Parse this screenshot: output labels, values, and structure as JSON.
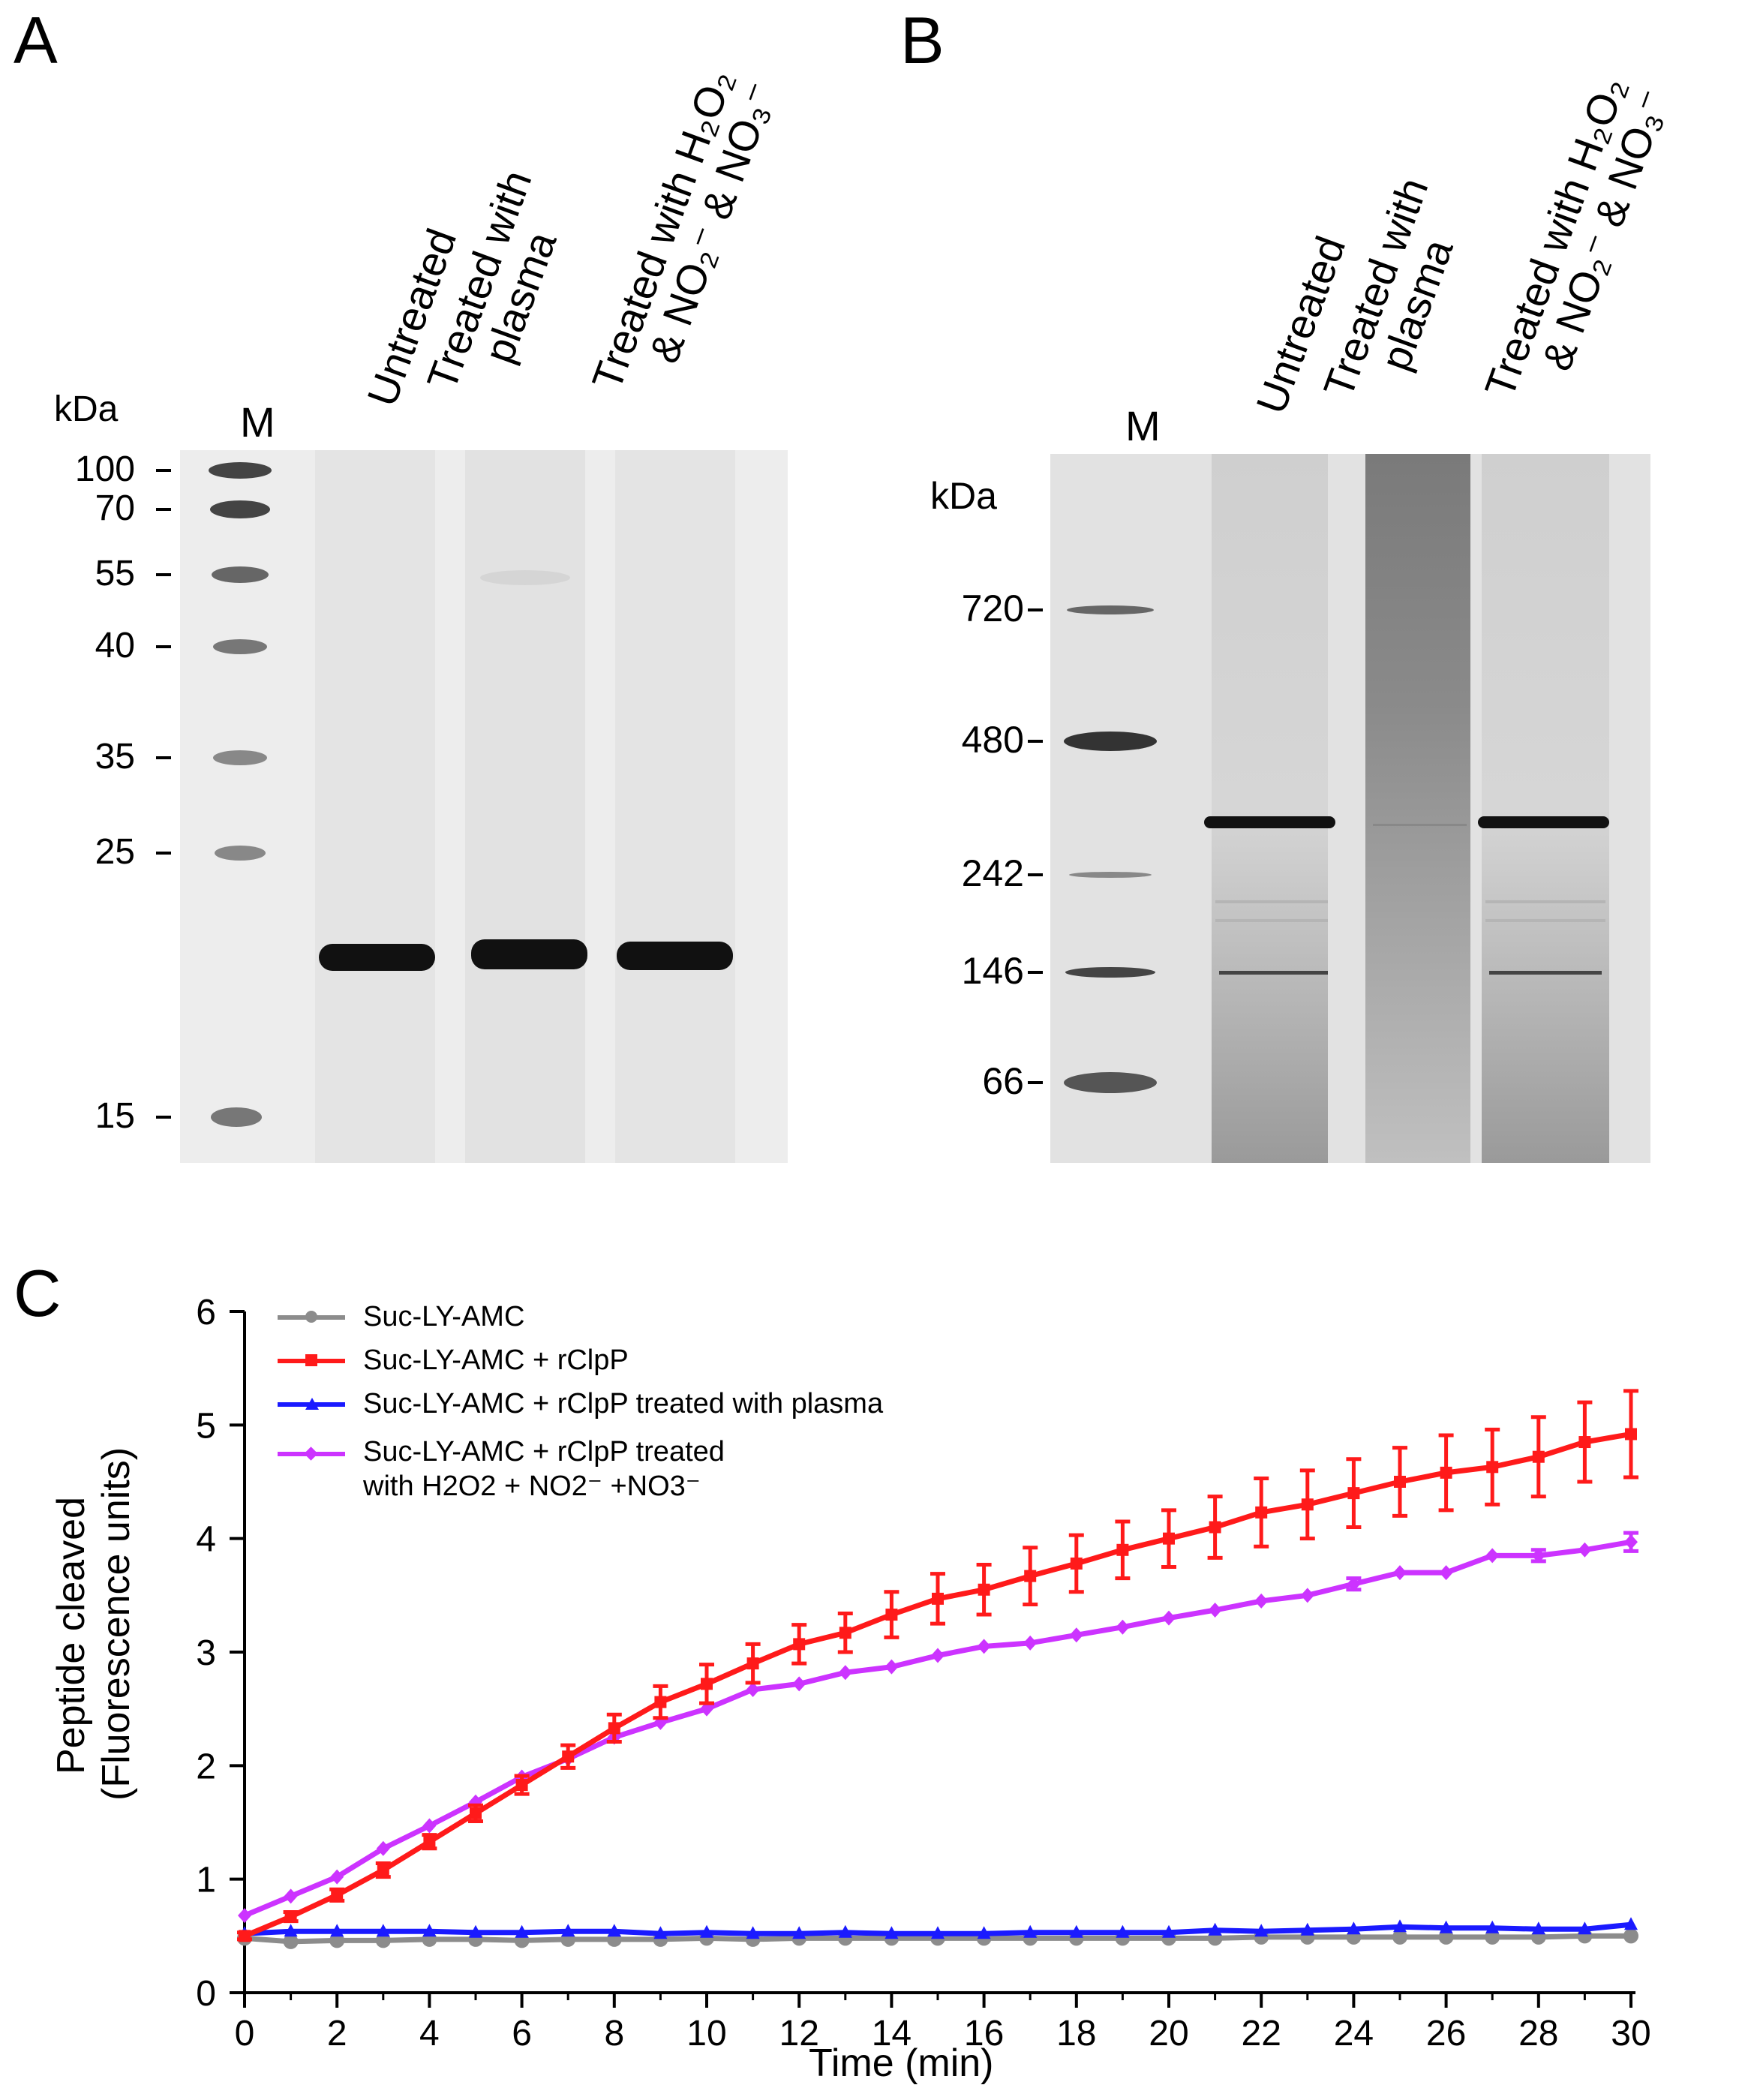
{
  "panel_a": {
    "letter": "A",
    "kda_label": "kDa",
    "marker_label": "M",
    "mw_markers": [
      "100",
      "70",
      "55",
      "40",
      "35",
      "25",
      "15"
    ],
    "lanes": [
      {
        "line1": "Untreated",
        "line2": ""
      },
      {
        "line1": "Treated with",
        "line2": "plasma"
      },
      {
        "line1": "Treated with H₂O₂",
        "line2": "& NO₂⁻ & NO₃⁻"
      }
    ]
  },
  "panel_b": {
    "letter": "B",
    "kda_label": "kDa",
    "marker_label": "M",
    "mw_markers": [
      "720",
      "480",
      "242",
      "146",
      "66"
    ],
    "lanes": [
      {
        "line1": "Untreated",
        "line2": ""
      },
      {
        "line1": "Treated with",
        "line2": "plasma"
      },
      {
        "line1": "Treated with H₂O₂",
        "line2": "& NO₂⁻ & NO₃⁻"
      }
    ]
  },
  "panel_c": {
    "letter": "C",
    "colors": {
      "gray": "#8c8c8c",
      "red": "#ff1a1a",
      "blue": "#1a1aff",
      "purple": "#cc33ff"
    }
  },
  "chart_data": {
    "type": "line",
    "xlabel": "Time (min)",
    "ylabel_line1": "Peptide cleaved",
    "ylabel_line2": "(Fluorescence units)",
    "xlim": [
      0,
      30
    ],
    "ylim": [
      0,
      6
    ],
    "xticks": [
      0,
      2,
      4,
      6,
      8,
      10,
      12,
      14,
      16,
      18,
      20,
      22,
      24,
      26,
      28,
      30
    ],
    "yticks": [
      0,
      1,
      2,
      3,
      4,
      5,
      6
    ],
    "x": [
      0,
      1,
      2,
      3,
      4,
      5,
      6,
      7,
      8,
      9,
      10,
      11,
      12,
      13,
      14,
      15,
      16,
      17,
      18,
      19,
      20,
      21,
      22,
      23,
      24,
      25,
      26,
      27,
      28,
      29,
      30
    ],
    "series": [
      {
        "name": "Suc-LY-AMC",
        "color": "#8c8c8c",
        "marker": "circle",
        "values": [
          0.48,
          0.45,
          0.46,
          0.46,
          0.47,
          0.47,
          0.46,
          0.47,
          0.47,
          0.47,
          0.48,
          0.47,
          0.48,
          0.48,
          0.48,
          0.48,
          0.48,
          0.48,
          0.48,
          0.48,
          0.48,
          0.48,
          0.49,
          0.49,
          0.49,
          0.49,
          0.49,
          0.49,
          0.49,
          0.5,
          0.5
        ],
        "error": []
      },
      {
        "name": "Suc-LY-AMC + rClpP",
        "color": "#ff1a1a",
        "marker": "square",
        "values": [
          0.5,
          0.67,
          0.86,
          1.08,
          1.33,
          1.58,
          1.83,
          2.08,
          2.33,
          2.56,
          2.72,
          2.9,
          3.07,
          3.17,
          3.33,
          3.47,
          3.55,
          3.67,
          3.78,
          3.9,
          4.0,
          4.1,
          4.23,
          4.3,
          4.4,
          4.5,
          4.58,
          4.63,
          4.72,
          4.85,
          4.92
        ],
        "error": [
          0.03,
          0.04,
          0.05,
          0.06,
          0.06,
          0.07,
          0.08,
          0.1,
          0.12,
          0.14,
          0.17,
          0.17,
          0.17,
          0.17,
          0.2,
          0.22,
          0.22,
          0.25,
          0.25,
          0.25,
          0.25,
          0.27,
          0.3,
          0.3,
          0.3,
          0.3,
          0.33,
          0.33,
          0.35,
          0.35,
          0.38
        ]
      },
      {
        "name": "Suc-LY-AMC + rClpP treated with plasma",
        "color": "#1a1aff",
        "marker": "triangle",
        "values": [
          0.52,
          0.54,
          0.54,
          0.54,
          0.54,
          0.53,
          0.53,
          0.54,
          0.54,
          0.52,
          0.53,
          0.52,
          0.52,
          0.53,
          0.52,
          0.52,
          0.52,
          0.53,
          0.53,
          0.53,
          0.53,
          0.55,
          0.54,
          0.55,
          0.56,
          0.58,
          0.57,
          0.57,
          0.56,
          0.56,
          0.6
        ],
        "error": []
      },
      {
        "name_line1": "Suc-LY-AMC + rClpP treated",
        "name_line2": "with H2O2 + NO2⁻ +NO3⁻",
        "color": "#cc33ff",
        "marker": "diamond",
        "values": [
          0.68,
          0.85,
          1.02,
          1.27,
          1.47,
          1.68,
          1.9,
          2.06,
          2.25,
          2.38,
          2.5,
          2.67,
          2.72,
          2.82,
          2.87,
          2.97,
          3.05,
          3.08,
          3.15,
          3.22,
          3.3,
          3.37,
          3.45,
          3.5,
          3.6,
          3.7,
          3.7,
          3.85,
          3.85,
          3.9,
          3.97
        ],
        "error": [
          0,
          0,
          0,
          0,
          0,
          0,
          0,
          0,
          0,
          0,
          0,
          0,
          0,
          0,
          0,
          0,
          0,
          0,
          0,
          0,
          0,
          0,
          0,
          0,
          0.05,
          0,
          0,
          0,
          0.05,
          0,
          0.08
        ]
      }
    ],
    "legend_position": "top-left"
  }
}
